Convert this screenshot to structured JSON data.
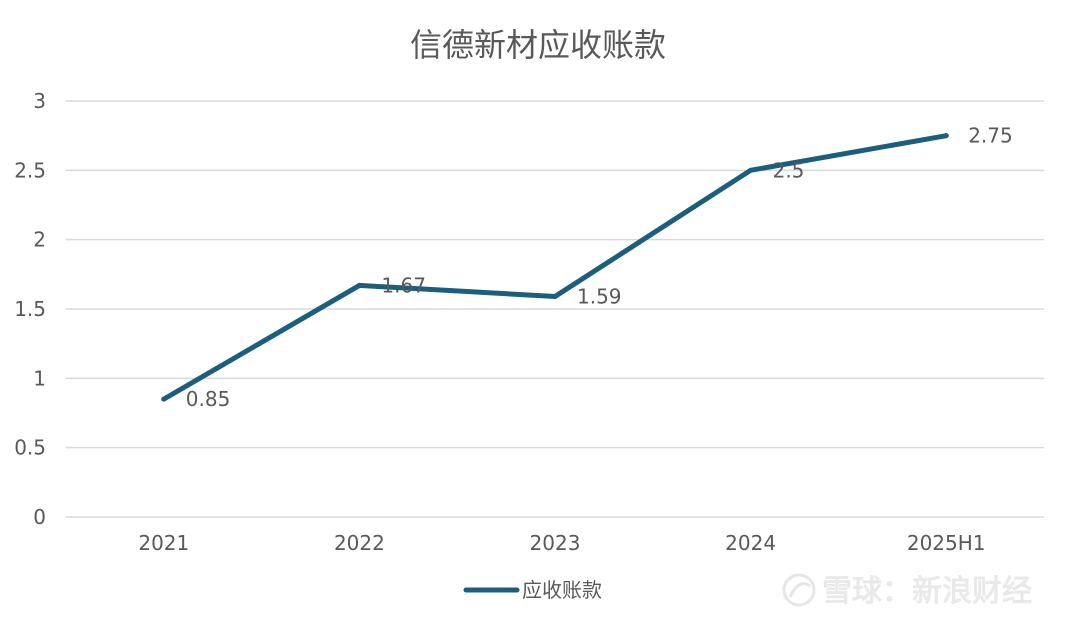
{
  "chart_data": {
    "type": "line",
    "title": "信德新材应收账款",
    "categories": [
      "2021",
      "2022",
      "2023",
      "2024",
      "2025H1"
    ],
    "series": [
      {
        "name": "应收账款",
        "values": [
          0.85,
          1.67,
          1.59,
          2.5,
          2.75
        ],
        "color": "#1b5e7e"
      }
    ],
    "ylim": [
      0,
      3
    ],
    "yticks": [
      0,
      0.5,
      1,
      1.5,
      2,
      2.5,
      3
    ],
    "ytick_labels": [
      "0",
      "0.5",
      "1",
      "1.5",
      "2",
      "2.5",
      "3"
    ],
    "data_labels": [
      "0.85",
      "1.67",
      "1.59",
      "2.5",
      "2.75"
    ],
    "grid": true,
    "legend": "bottom"
  },
  "watermark": {
    "text": "雪球：新浪财经"
  },
  "colors": {
    "line": "#1b5e7e",
    "grid": "#d9d9d9",
    "text": "#595959",
    "title": "#595959"
  }
}
